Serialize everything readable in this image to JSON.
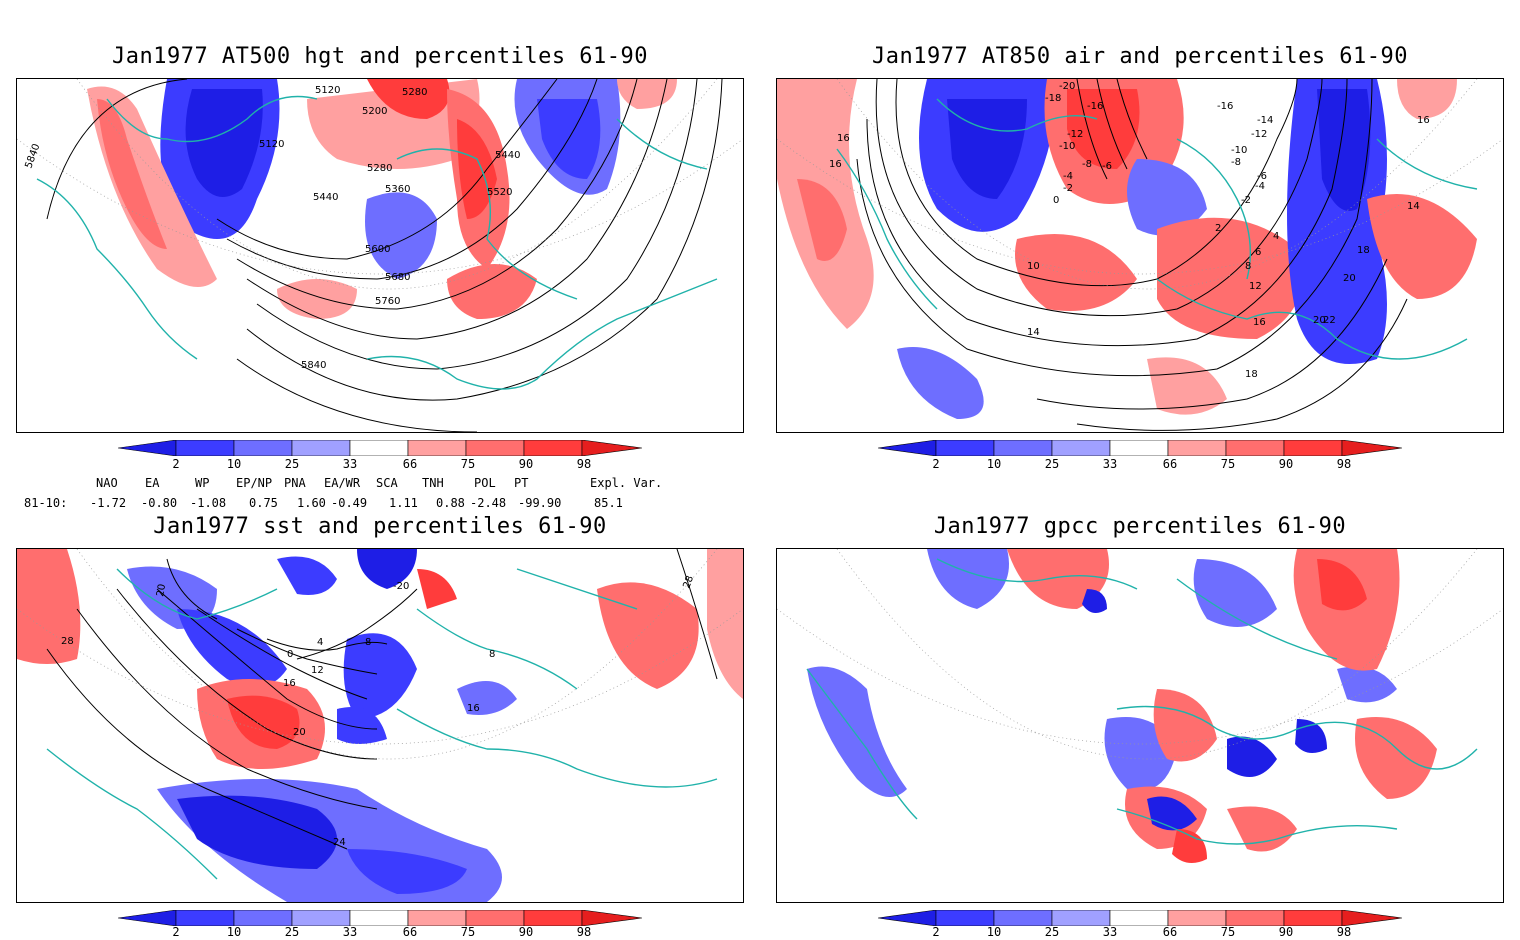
{
  "panels": [
    {
      "title": "Jan1977 AT500 hgt and percentiles 61-90",
      "contour_labels": [
        "5120",
        "5280",
        "5200",
        "5120",
        "5280",
        "5360",
        "5440",
        "5440",
        "5520",
        "5600",
        "5680",
        "5760",
        "5840",
        "5840"
      ]
    },
    {
      "title": "Jan1977 AT850 air and percentiles 61-90",
      "contour_labels": [
        "-20",
        "-18",
        "-16",
        "-16",
        "-12",
        "-10",
        "-8",
        "-6",
        "-4",
        "-2",
        "0",
        "2",
        "4",
        "6",
        "8",
        "10",
        "12",
        "14",
        "16",
        "18",
        "20",
        "22",
        "-14",
        "-12",
        "-10",
        "-8",
        "-6",
        "-4",
        "-2",
        "16",
        "16",
        "14",
        "16",
        "18",
        "20"
      ]
    },
    {
      "title": "Jan1977 sst and percentiles 61-90",
      "contour_labels": [
        "28",
        "20",
        "0",
        "4",
        "8",
        "12",
        "16",
        "20",
        "24",
        "28",
        "8",
        "16",
        "-20"
      ]
    },
    {
      "title": "Jan1977 gpcc percentiles 61-90",
      "contour_labels": []
    }
  ],
  "colorbar": {
    "labels": [
      "2",
      "10",
      "25",
      "33",
      "66",
      "75",
      "90",
      "98"
    ],
    "colors": [
      "#1e1ee6",
      "#3c3cff",
      "#6e6eff",
      "#a0a0ff",
      "#ffffff",
      "#ffa0a0",
      "#ff6e6e",
      "#ff3c3c",
      "#e61e1e"
    ]
  },
  "indices": {
    "headers": [
      "NAO",
      "EA",
      "WP",
      "EP/NP",
      "PNA",
      "EA/WR",
      "SCA",
      "TNH",
      "POL",
      "PT",
      "Expl. Var."
    ],
    "row_label": "81-10:",
    "values": [
      "-1.72",
      "-0.80",
      "-1.08",
      "0.75",
      "1.60",
      "-0.49",
      "1.11",
      "0.88",
      "-2.48",
      "-99.90",
      "85.1"
    ]
  }
}
